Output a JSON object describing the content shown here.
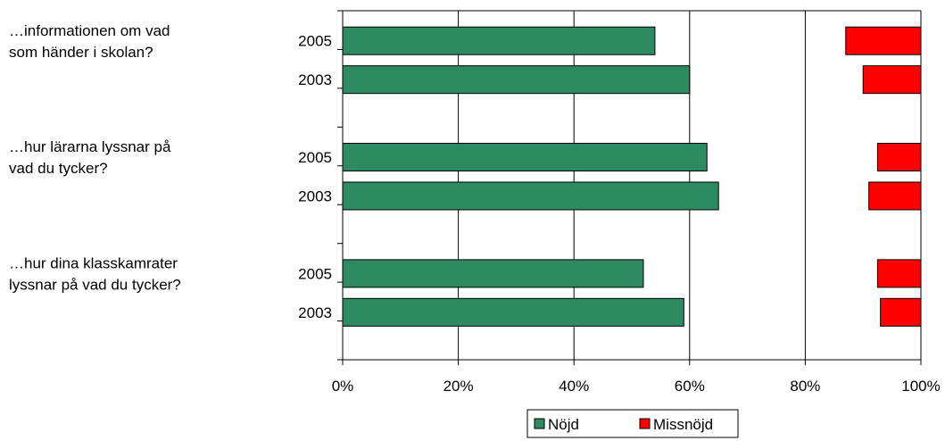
{
  "chart_data": {
    "type": "bar",
    "orientation": "horizontal",
    "stacked": true,
    "xlim": [
      0,
      100
    ],
    "x_ticks": [
      "0%",
      "20%",
      "40%",
      "60%",
      "80%",
      "100%"
    ],
    "gridlines": "vertical",
    "legend": {
      "position": "bottom",
      "entries": [
        "Nöjd",
        "Missnöjd"
      ]
    },
    "groups": [
      {
        "label_lines": [
          "…informationen om vad",
          "som händer i skolan?"
        ],
        "bars": [
          {
            "year": "2005",
            "nojd": 54,
            "missnojd": 13
          },
          {
            "year": "2003",
            "nojd": 60,
            "missnojd": 10
          }
        ]
      },
      {
        "label_lines": [
          "…hur lärarna lyssnar på",
          "vad du tycker?"
        ],
        "bars": [
          {
            "year": "2005",
            "nojd": 63,
            "missnojd": 7.5
          },
          {
            "year": "2003",
            "nojd": 65,
            "missnojd": 9
          }
        ]
      },
      {
        "label_lines": [
          "…hur dina klasskamrater",
          "lyssnar på vad du tycker?"
        ],
        "bars": [
          {
            "year": "2005",
            "nojd": 52,
            "missnojd": 7.5
          },
          {
            "year": "2003",
            "nojd": 59,
            "missnojd": 7
          }
        ]
      }
    ],
    "colors": {
      "nojd": "#2e8b61",
      "missnojd": "#ff0000"
    }
  }
}
